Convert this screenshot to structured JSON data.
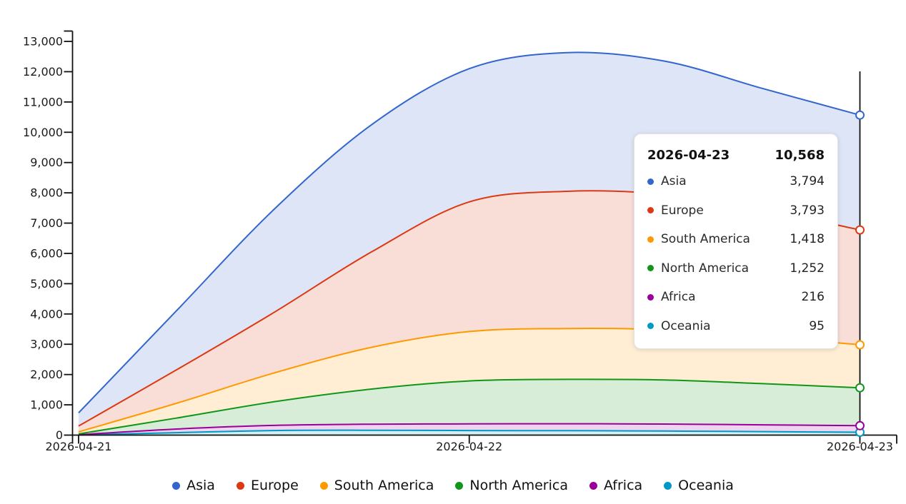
{
  "chart_data": {
    "type": "area",
    "stacked": true,
    "title": "",
    "xlabel": "",
    "ylabel": "",
    "x_tick_labels": [
      "2026-04-21",
      "2026-04-22",
      "2026-04-23"
    ],
    "sample_positions": [
      0,
      0.125,
      0.25,
      0.375,
      0.5,
      0.625,
      0.75,
      0.875,
      1
    ],
    "y_axis": {
      "min": 0,
      "max": 13000,
      "step": 1000,
      "tick_labels": [
        "0",
        "1,000",
        "2,000",
        "3,000",
        "4,000",
        "5,000",
        "6,000",
        "7,000",
        "8,000",
        "9,000",
        "10,000",
        "11,000",
        "12,000",
        "13,000"
      ]
    },
    "legend_position": "bottom",
    "grid": false,
    "stack_order": "bottom-up-from-last-series",
    "crosshair_at": "2026-04-23",
    "series": [
      {
        "name": "Asia",
        "color": "#3366CC",
        "values": [
          435,
          1950,
          3400,
          4200,
          4400,
          4580,
          4400,
          4000,
          3794
        ]
      },
      {
        "name": "Europe",
        "color": "#DC3912",
        "values": [
          195,
          1100,
          2000,
          3150,
          4280,
          4530,
          4470,
          4190,
          3793
        ]
      },
      {
        "name": "South America",
        "color": "#FF9900",
        "values": [
          65,
          490,
          950,
          1380,
          1630,
          1680,
          1660,
          1560,
          1418
        ]
      },
      {
        "name": "North America",
        "color": "#109618",
        "values": [
          25,
          360,
          780,
          1160,
          1420,
          1465,
          1455,
          1360,
          1252
        ]
      },
      {
        "name": "Africa",
        "color": "#990099",
        "values": [
          7,
          120,
          170,
          200,
          220,
          230,
          230,
          225,
          216
        ]
      },
      {
        "name": "Oceania",
        "color": "#0099C6",
        "values": [
          8,
          80,
          150,
          160,
          150,
          145,
          135,
          115,
          95
        ]
      }
    ]
  },
  "tooltip": {
    "date": "2026-04-23",
    "total": "10,568",
    "rows": [
      {
        "value": "3,794"
      },
      {
        "value": "3,793"
      },
      {
        "value": "1,418"
      },
      {
        "value": "1,252"
      },
      {
        "value": "216"
      },
      {
        "value": "95"
      }
    ]
  }
}
